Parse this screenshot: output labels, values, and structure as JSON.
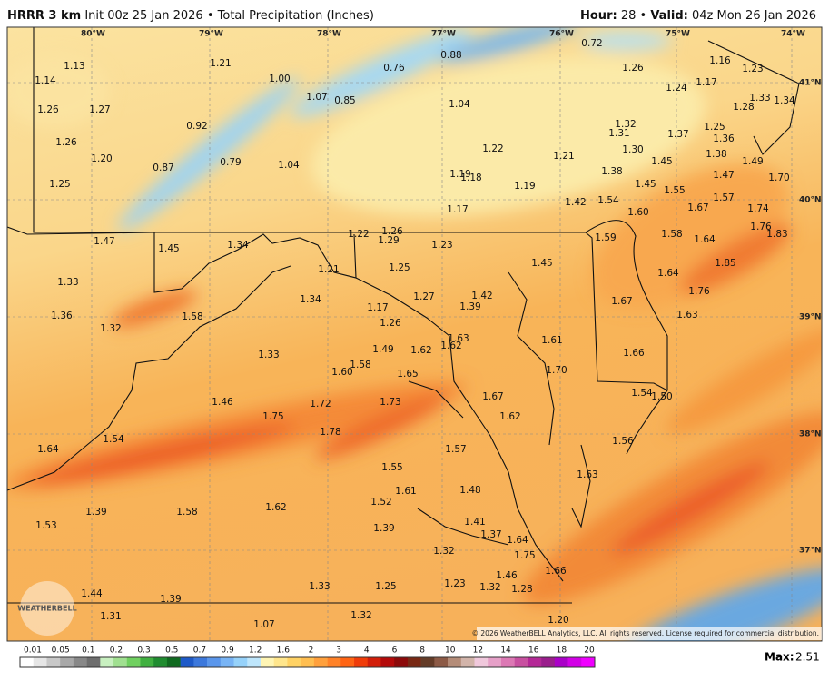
{
  "header": {
    "model": "HRRR 3 km",
    "init": "Init 00z 25 Jan 2026",
    "separator": "•",
    "product": "Total Precipitation (Inches)",
    "hour_label": "Hour:",
    "hour": "28",
    "valid_label": "Valid:",
    "valid": "04z Mon 26 Jan 2026"
  },
  "longitudes": [
    "80°W",
    "79°W",
    "78°W",
    "77°W",
    "76°W",
    "75°W",
    "74°W"
  ],
  "latitudes": [
    "41°N",
    "40°N",
    "39°N",
    "38°N",
    "37°N"
  ],
  "map_labels": [
    "1.13",
    "1.14",
    "1.21",
    "1.00",
    "0.76",
    "0.88",
    "0.72",
    "1.26",
    "1.16",
    "1.23",
    "1.24",
    "1.17",
    "1.33",
    "1.34",
    "1.28",
    "1.07",
    "0.85",
    "1.04",
    "1.26",
    "1.27",
    "0.92",
    "1.32",
    "1.31",
    "1.37",
    "1.25",
    "1.36",
    "1.26",
    "1.22",
    "1.21",
    "1.30",
    "1.38",
    "1.49",
    "1.20",
    "0.87",
    "0.79",
    "1.04",
    "1.45",
    "1.38",
    "1.47",
    "1.19",
    "1.18",
    "1.19",
    "1.25",
    "1.45",
    "1.55",
    "1.70",
    "1.42",
    "1.54",
    "1.57",
    "1.67",
    "1.74",
    "1.17",
    "1.60",
    "1.76",
    "1.83",
    "1.22",
    "1.26",
    "1.29",
    "1.23",
    "1.59",
    "1.58",
    "1.64",
    "1.47",
    "1.45",
    "1.34",
    "1.85",
    "1.45",
    "1.21",
    "1.25",
    "1.64",
    "1.33",
    "1.34",
    "1.27",
    "1.42",
    "1.39",
    "1.76",
    "1.67",
    "1.17",
    "1.58",
    "1.36",
    "1.63",
    "1.26",
    "1.32",
    "1.63",
    "1.62",
    "1.62",
    "1.61",
    "1.49",
    "1.33",
    "1.66",
    "1.58",
    "1.60",
    "1.65",
    "1.70",
    "1.54",
    "1.50",
    "1.46",
    "1.72",
    "1.73",
    "1.67",
    "1.75",
    "1.62",
    "1.78",
    "1.54",
    "1.56",
    "1.64",
    "1.57",
    "1.55",
    "1.63",
    "1.61",
    "1.48",
    "1.52",
    "1.62",
    "1.39",
    "1.58",
    "1.53",
    "1.41",
    "1.39",
    "1.37",
    "1.64",
    "1.32",
    "1.75",
    "1.66",
    "1.46",
    "1.23",
    "1.32",
    "1.28",
    "1.33",
    "1.25",
    "1.44",
    "1.39",
    "1.31",
    "1.32",
    "1.07",
    "1.20"
  ],
  "colorbar": {
    "levels": [
      "0.01",
      "0.05",
      "0.1",
      "0.2",
      "0.3",
      "0.5",
      "0.7",
      "0.9",
      "1.2",
      "1.6",
      "2",
      "3",
      "4",
      "6",
      "8",
      "10",
      "12",
      "14",
      "16",
      "18",
      "20"
    ],
    "max_label": "Max:",
    "max": "2.51"
  },
  "copyright": "© 2026 WeatherBELL Analytics, LLC. All rights reserved. License required for commercial distribution.",
  "logo": "WEATHERBELL"
}
